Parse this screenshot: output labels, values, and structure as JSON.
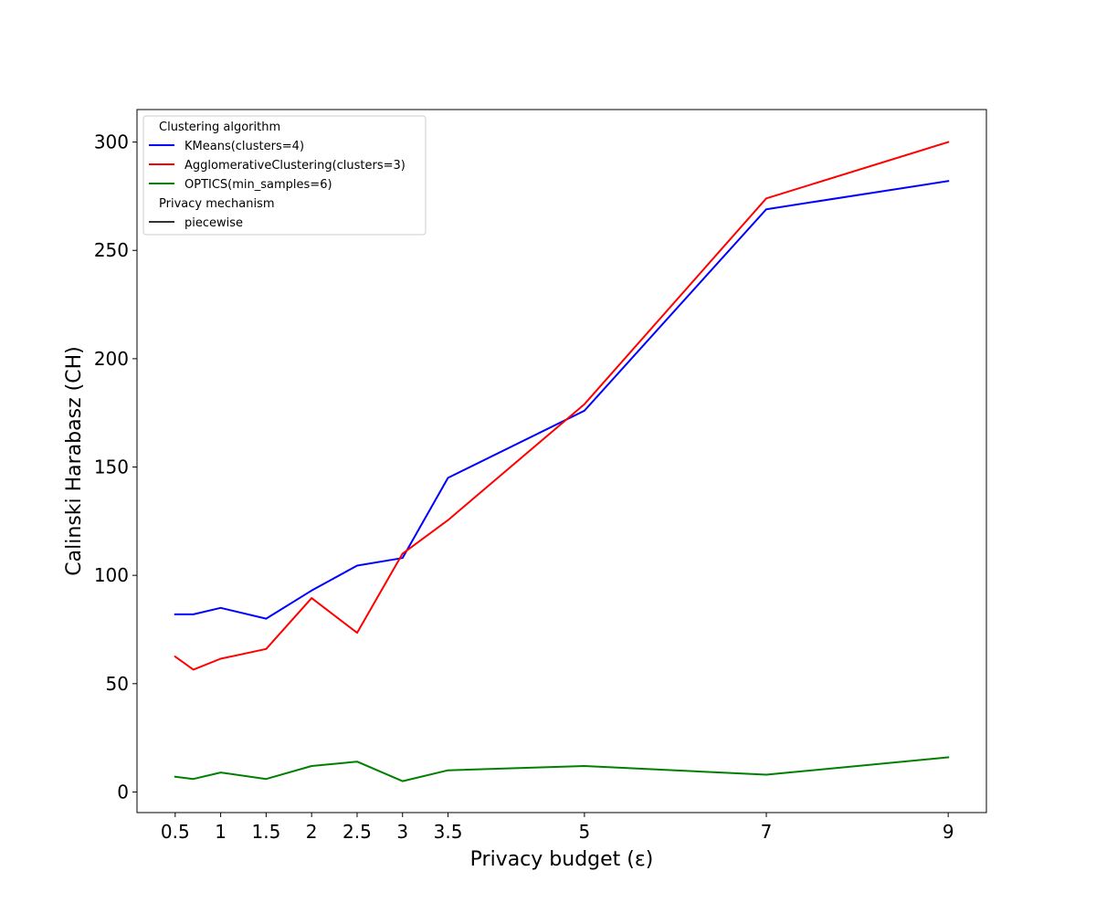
{
  "chart_data": {
    "type": "line",
    "title": "",
    "xlabel": "Privacy budget (ε)",
    "ylabel": "Calinski Harabasz (CH)",
    "xlim": [
      0.08,
      9.42
    ],
    "ylim": [
      -9.5,
      315
    ],
    "grid": false,
    "x_ticks": [
      0.5,
      1,
      1.5,
      2,
      2.5,
      3,
      3.5,
      5,
      7,
      9
    ],
    "x_tick_labels": [
      "0.5",
      "1",
      "1.5",
      "2",
      "2.5",
      "3",
      "3.5",
      "5",
      "7",
      "9"
    ],
    "y_ticks": [
      0,
      50,
      100,
      150,
      200,
      250,
      300
    ],
    "y_tick_labels": [
      "0",
      "50",
      "100",
      "150",
      "200",
      "250",
      "300"
    ],
    "x": [
      0.5,
      0.7,
      1,
      1.5,
      2,
      2.5,
      3,
      3.5,
      5,
      7,
      9
    ],
    "series": [
      {
        "name": "KMeans(clusters=4)",
        "color": "#0000ff",
        "values": [
          82,
          82,
          85,
          80,
          93,
          104.5,
          108,
          145,
          176,
          269,
          282
        ]
      },
      {
        "name": "AgglomerativeClustering(clusters=3)",
        "color": "#ff0000",
        "values": [
          62.5,
          56.5,
          61.5,
          66,
          89.5,
          73.5,
          110,
          125.5,
          179,
          274,
          300
        ]
      },
      {
        "name": "OPTICS(min_samples=6)",
        "color": "#008000",
        "values": [
          7,
          6,
          9,
          6,
          12,
          14,
          5,
          10,
          12,
          8,
          16
        ]
      }
    ],
    "legend": {
      "placement": "top-left",
      "hue_title": "Clustering algorithm",
      "style_title": "Privacy mechanism",
      "style_entries": [
        {
          "name": "piecewise",
          "color": "#333333"
        }
      ]
    }
  }
}
